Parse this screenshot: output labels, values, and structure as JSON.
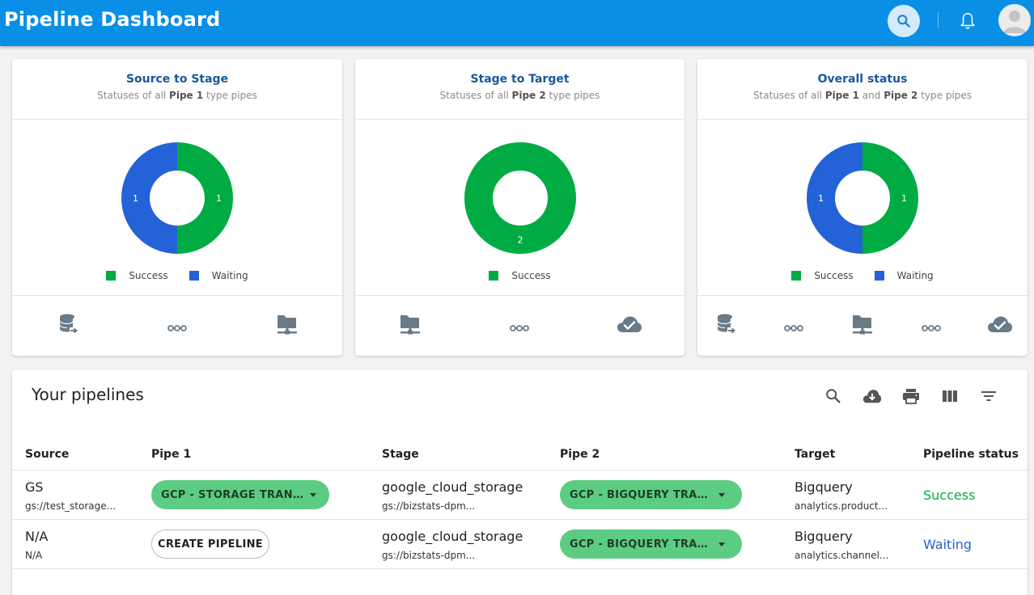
{
  "app": {
    "title": "Pipeline Dashboard"
  },
  "header_icons": {
    "search": "search-icon",
    "notifications": "bell-icon",
    "avatar": "user-avatar-icon"
  },
  "colors": {
    "success": "#00ab43",
    "waiting": "#2462d8",
    "appbar": "#0a8fe6"
  },
  "cards": [
    {
      "title": "Source to Stage",
      "subtitle_pre": "Statuses of all ",
      "subtitle_b1": "Pipe 1",
      "subtitle_mid": "",
      "subtitle_b2": "",
      "subtitle_post": " type pipes",
      "icons": [
        "database-transfer-icon",
        "pipe-connector-icon",
        "folder-network-icon"
      ]
    },
    {
      "title": "Stage to Target",
      "subtitle_pre": "Statuses of all ",
      "subtitle_b1": "Pipe 2",
      "subtitle_mid": "",
      "subtitle_b2": "",
      "subtitle_post": " type pipes",
      "icons": [
        "folder-network-icon",
        "pipe-connector-icon",
        "cloud-check-icon"
      ]
    },
    {
      "title": "Overall status",
      "subtitle_pre": "Statuses of all ",
      "subtitle_b1": "Pipe 1",
      "subtitle_mid": " and ",
      "subtitle_b2": "Pipe 2",
      "subtitle_post": " type pipes",
      "icons": [
        "database-transfer-icon",
        "pipe-connector-icon",
        "folder-network-icon",
        "pipe-connector-icon",
        "cloud-check-icon"
      ]
    }
  ],
  "chart_data": [
    {
      "type": "pie",
      "title": "Source to Stage",
      "labels": [
        "Success",
        "Waiting"
      ],
      "values": [
        1,
        1
      ],
      "colors": [
        "#00ab43",
        "#2462d8"
      ],
      "legend": "bottom"
    },
    {
      "type": "pie",
      "title": "Stage to Target",
      "labels": [
        "Success"
      ],
      "values": [
        2
      ],
      "colors": [
        "#00ab43"
      ],
      "legend": "bottom"
    },
    {
      "type": "pie",
      "title": "Overall status",
      "labels": [
        "Success",
        "Waiting"
      ],
      "values": [
        1,
        1
      ],
      "colors": [
        "#00ab43",
        "#2462d8"
      ],
      "legend": "bottom"
    }
  ],
  "pipelines": {
    "title": "Your pipelines",
    "toolbar_icons": [
      "search-icon",
      "cloud-download-icon",
      "print-icon",
      "view-columns-icon",
      "filter-icon"
    ],
    "columns": [
      "Source",
      "Pipe 1",
      "Stage",
      "Pipe 2",
      "Target",
      "Pipeline status"
    ],
    "rows": [
      {
        "source": "GS",
        "source_path": "gs://test_storage...",
        "pipe1": "GCP - STORAGE TRANSFER ...",
        "stage": "google_cloud_storage",
        "stage_path": "gs://bizstats-dpm...",
        "pipe2": "GCP - BIGQUERY TRANSFER...",
        "target": "Bigquery",
        "target_path": "analytics.product...",
        "status": "Success",
        "status_color": "#00ab43"
      },
      {
        "source": "N/A",
        "source_path": "N/A",
        "pipe1_button": "CREATE PIPELINE",
        "stage": "google_cloud_storage",
        "stage_path": "gs://bizstats-dpm...",
        "pipe2": "GCP - BIGQUERY TRANSFER...",
        "target": "Bigquery",
        "target_path": "analytics.channel...",
        "status": "Waiting",
        "status_color": "#2462d8"
      }
    ]
  }
}
